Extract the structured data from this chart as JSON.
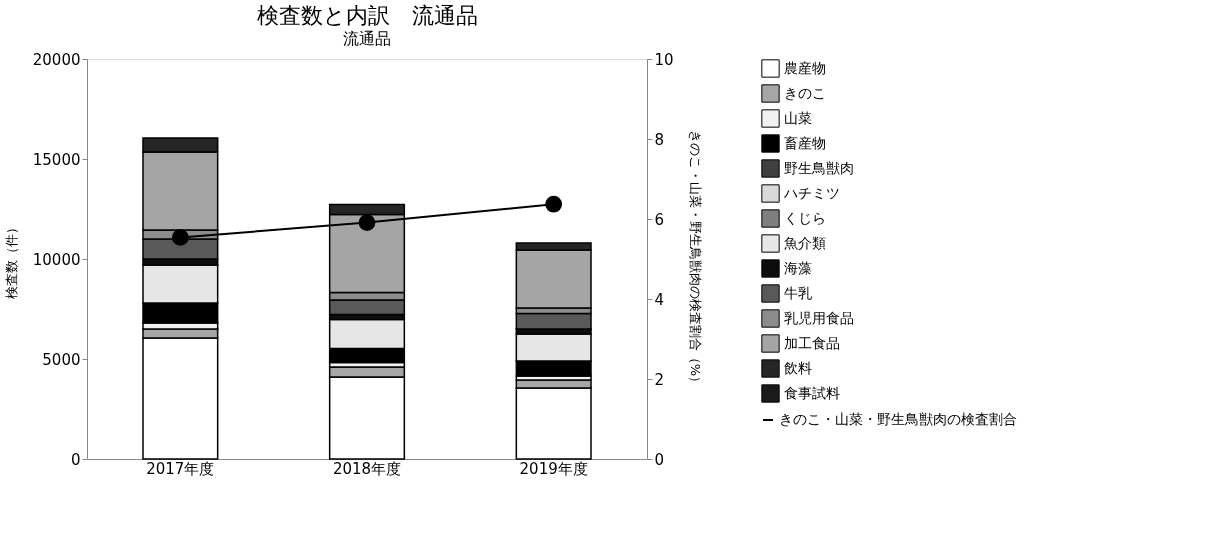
{
  "chart_data": {
    "type": "bar",
    "title": "検査数と内訳　流通品",
    "annotations": [
      "流通品"
    ],
    "categories": [
      "2017年度",
      "2018年度",
      "2019年度"
    ],
    "stacked": true,
    "ylabel": "検査数（件）",
    "y2label": "きのこ・山菜・野生鳥獣肉の検査割合（%）",
    "ylim": [
      0,
      20000
    ],
    "yticks": [
      0,
      5000,
      10000,
      15000,
      20000
    ],
    "y2lim": [
      0,
      10
    ],
    "y2ticks": [
      0,
      2,
      4,
      6,
      8,
      10
    ],
    "legend": "right",
    "grid": false,
    "series": [
      {
        "name": "農産物",
        "color": "#ffffff",
        "values": [
          6050,
          4100,
          3550
        ]
      },
      {
        "name": "きのこ",
        "color": "#a6a6a6",
        "values": [
          450,
          500,
          400
        ]
      },
      {
        "name": "山菜",
        "color": "#f2f2f2",
        "values": [
          300,
          230,
          200
        ]
      },
      {
        "name": "畜産物",
        "color": "#000000",
        "values": [
          1000,
          700,
          750
        ]
      },
      {
        "name": "野生鳥獣肉",
        "color": "#404040",
        "values": [
          null,
          null,
          null
        ]
      },
      {
        "name": "ハチミツ",
        "color": "#d9d9d9",
        "values": [
          null,
          null,
          null
        ]
      },
      {
        "name": "くじら",
        "color": "#7f7f7f",
        "values": [
          null,
          null,
          null
        ]
      },
      {
        "name": "魚介類",
        "color": "#e7e6e6",
        "values": [
          1900,
          1450,
          1350
        ]
      },
      {
        "name": "海藻",
        "color": "#0d0d0d",
        "values": [
          300,
          250,
          250
        ]
      },
      {
        "name": "牛乳",
        "color": "#595959",
        "values": [
          1000,
          720,
          780
        ]
      },
      {
        "name": "乳児用食品",
        "color": "#8c8c8c",
        "values": [
          450,
          370,
          270
        ]
      },
      {
        "name": "加工食品",
        "color": "#a5a5a5",
        "values": [
          3900,
          3900,
          2900
        ]
      },
      {
        "name": "飲料",
        "color": "#262626",
        "values": [
          700,
          500,
          350
        ]
      },
      {
        "name": "食事試料",
        "color": "#1a1a1a",
        "values": [
          null,
          null,
          null
        ]
      },
      {
        "name": "きのこ・山菜・野生鳥獣肉の検査割合",
        "type": "line",
        "axis": "y2",
        "color": "#000000",
        "marker": "circle",
        "values": [
          5.54,
          5.91,
          6.37
        ]
      }
    ]
  }
}
